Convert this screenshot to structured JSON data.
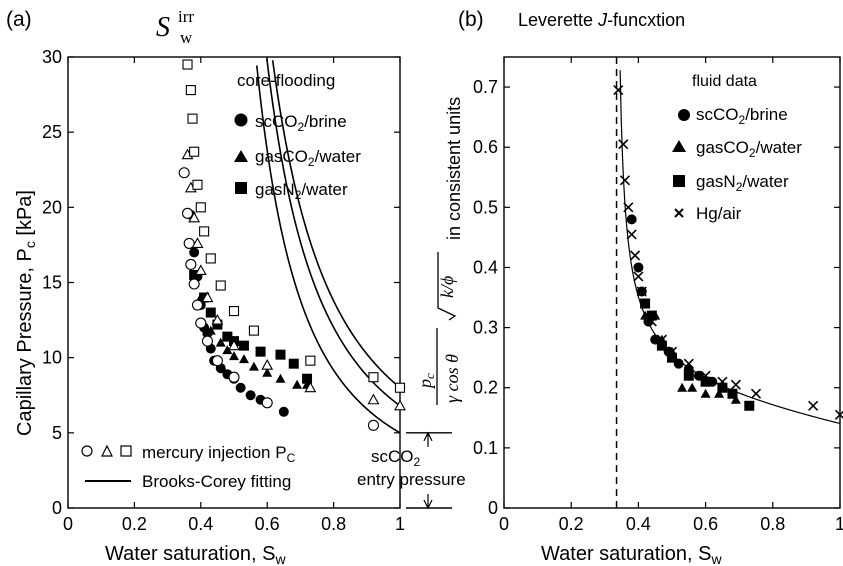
{
  "colors": {
    "ink": "#000000",
    "background": "#ffffff"
  },
  "chart_data": [
    {
      "type": "scatter",
      "panel_label": "(a)",
      "title": "",
      "top_label": {
        "base": "S",
        "sup": "irr",
        "sub": "w"
      },
      "xlabel": {
        "text": "Water saturation, S",
        "sub": "w"
      },
      "ylabel": {
        "text": "Capillary Pressure, P",
        "sub": "c",
        "unit": " [kPa]"
      },
      "xlim": [
        0,
        1
      ],
      "ylim": [
        0,
        30
      ],
      "xticks": [
        "0",
        "0.2",
        "0.4",
        "0.6",
        "0.8",
        "1"
      ],
      "yticks": [
        "0",
        "5",
        "10",
        "15",
        "20",
        "25",
        "30"
      ],
      "legend_title": "core-flooding",
      "legend": [
        {
          "marker": "circle-filled",
          "name": "scCO",
          "sub": "2",
          "rest": "/brine"
        },
        {
          "marker": "triangle-filled",
          "name": "gasCO",
          "sub": "2",
          "rest": "/water"
        },
        {
          "marker": "square-filled",
          "name": "gasN",
          "sub": "2",
          "rest": "/water"
        }
      ],
      "legend2": [
        {
          "marker": "open-symbols",
          "text": "mercury injection P",
          "sub": "C"
        },
        {
          "marker": "line",
          "text": "Brooks-Corey fitting"
        }
      ],
      "annotation": {
        "line1": "scCO",
        "sub": "2",
        "line2": "entry pressure",
        "range_y": [
          0,
          5
        ]
      },
      "series": [
        {
          "name": "scCO2/brine core-flooding",
          "marker": "circle-filled",
          "x": [
            0.37,
            0.38,
            0.39,
            0.4,
            0.41,
            0.42,
            0.43,
            0.44,
            0.46,
            0.48,
            0.5,
            0.52,
            0.55,
            0.58,
            0.65
          ],
          "y": [
            19.5,
            17.0,
            15.4,
            13.5,
            12.0,
            11.6,
            10.6,
            9.8,
            9.3,
            8.9,
            8.6,
            8.0,
            7.5,
            7.2,
            6.4
          ]
        },
        {
          "name": "gasCO2/water core-flooding",
          "marker": "triangle-filled",
          "x": [
            0.4,
            0.43,
            0.46,
            0.48,
            0.5,
            0.53,
            0.56,
            0.6,
            0.64,
            0.69,
            0.72
          ],
          "y": [
            14.0,
            11.8,
            11.0,
            10.5,
            10.1,
            9.9,
            9.4,
            9.0,
            8.6,
            8.2,
            8.2
          ]
        },
        {
          "name": "gasN2/water core-flooding",
          "marker": "square-filled",
          "x": [
            0.38,
            0.41,
            0.43,
            0.45,
            0.48,
            0.5,
            0.53,
            0.58,
            0.64,
            0.68,
            0.72
          ],
          "y": [
            15.5,
            14.0,
            13.0,
            12.2,
            11.4,
            11.1,
            10.8,
            10.4,
            10.2,
            9.6,
            8.6
          ]
        },
        {
          "name": "scCO2/brine mercury injection",
          "marker": "circle-open",
          "x": [
            0.35,
            0.36,
            0.365,
            0.37,
            0.38,
            0.39,
            0.4,
            0.42,
            0.45,
            0.5,
            0.6,
            0.92
          ],
          "y": [
            22.3,
            19.6,
            17.6,
            16.2,
            14.9,
            13.5,
            12.3,
            11.1,
            9.8,
            8.7,
            7.0,
            5.5
          ]
        },
        {
          "name": "gasCO2/water mercury injection",
          "marker": "triangle-open",
          "x": [
            0.36,
            0.37,
            0.38,
            0.39,
            0.4,
            0.42,
            0.45,
            0.5,
            0.6,
            0.73,
            0.92,
            1.0
          ],
          "y": [
            23.5,
            21.3,
            19.3,
            17.6,
            15.8,
            14.0,
            12.5,
            10.8,
            9.5,
            8.0,
            7.2,
            6.8
          ]
        },
        {
          "name": "gasN2/water mercury injection",
          "marker": "square-open",
          "x": [
            0.36,
            0.37,
            0.375,
            0.38,
            0.39,
            0.4,
            0.41,
            0.43,
            0.46,
            0.5,
            0.56,
            0.73,
            0.92,
            1.0
          ],
          "y": [
            29.5,
            27.8,
            25.9,
            23.7,
            21.5,
            20.0,
            18.4,
            16.6,
            14.8,
            13.1,
            11.8,
            9.8,
            8.7,
            8.0
          ]
        }
      ],
      "fits": [
        {
          "name": "Brooks-Corey fit 1",
          "pe": 5.0,
          "swi": 0.335,
          "lambda": 0.59
        },
        {
          "name": "Brooks-Corey fit 2",
          "pe": 6.8,
          "swi": 0.345,
          "lambda": 0.64
        },
        {
          "name": "Brooks-Corey fit 3",
          "pe": 8.0,
          "swi": 0.345,
          "lambda": 0.67
        }
      ]
    },
    {
      "type": "scatter",
      "panel_label": "(b)",
      "title": {
        "pre": "Leverette ",
        "italic": "J",
        "post": "-funcxtion"
      },
      "xlabel": {
        "text": "Water saturation, S",
        "sub": "w"
      },
      "ylabel": {
        "num": "p",
        "num_sub": "c",
        "den": "γ cos θ",
        "sqrt": "k/ϕ",
        "rest": " in consistent units"
      },
      "xlim": [
        0,
        1
      ],
      "ylim": [
        0,
        0.75
      ],
      "xticks": [
        "0",
        "0.2",
        "0.4",
        "0.6",
        "0.8",
        "1"
      ],
      "yticks": [
        "0",
        "0.1",
        "0.2",
        "0.3",
        "0.4",
        "0.5",
        "0.6",
        "0.7"
      ],
      "vline_x": 0.335,
      "legend_title": "fluid data",
      "legend": [
        {
          "marker": "circle-filled",
          "name": "scCO",
          "sub": "2",
          "rest": "/brine"
        },
        {
          "marker": "triangle-filled",
          "name": "gasCO",
          "sub": "2",
          "rest": "/water"
        },
        {
          "marker": "square-filled",
          "name": "gasN",
          "sub": "2",
          "rest": "/water"
        },
        {
          "marker": "x",
          "name": "Hg/air",
          "sub": "",
          "rest": ""
        }
      ],
      "series": [
        {
          "name": "scCO2/brine",
          "marker": "circle-filled",
          "x": [
            0.38,
            0.4,
            0.41,
            0.43,
            0.45,
            0.47,
            0.49,
            0.52,
            0.55,
            0.58,
            0.62
          ],
          "y": [
            0.48,
            0.4,
            0.36,
            0.31,
            0.28,
            0.27,
            0.26,
            0.24,
            0.23,
            0.22,
            0.21
          ]
        },
        {
          "name": "gasCO2/water",
          "marker": "triangle-filled",
          "x": [
            0.42,
            0.45,
            0.47,
            0.5,
            0.53,
            0.56,
            0.6,
            0.64,
            0.69
          ],
          "y": [
            0.32,
            0.32,
            0.28,
            0.26,
            0.2,
            0.2,
            0.19,
            0.19,
            0.18
          ]
        },
        {
          "name": "gasN2/water",
          "marker": "square-filled",
          "x": [
            0.42,
            0.44,
            0.47,
            0.5,
            0.55,
            0.6,
            0.65,
            0.68,
            0.73
          ],
          "y": [
            0.34,
            0.32,
            0.27,
            0.25,
            0.22,
            0.21,
            0.2,
            0.19,
            0.17
          ]
        },
        {
          "name": "Hg/air",
          "marker": "x",
          "x": [
            0.34,
            0.355,
            0.36,
            0.37,
            0.38,
            0.39,
            0.4,
            0.41,
            0.42,
            0.44,
            0.47,
            0.5,
            0.55,
            0.6,
            0.65,
            0.69,
            0.75,
            0.92,
            1.0
          ],
          "y": [
            0.695,
            0.605,
            0.545,
            0.5,
            0.455,
            0.42,
            0.385,
            0.36,
            0.34,
            0.31,
            0.28,
            0.26,
            0.24,
            0.22,
            0.21,
            0.205,
            0.19,
            0.17,
            0.155
          ]
        }
      ],
      "fit": {
        "a": 0.11,
        "b": 0.3,
        "c": 0.08,
        "swi": 0.335
      }
    }
  ]
}
